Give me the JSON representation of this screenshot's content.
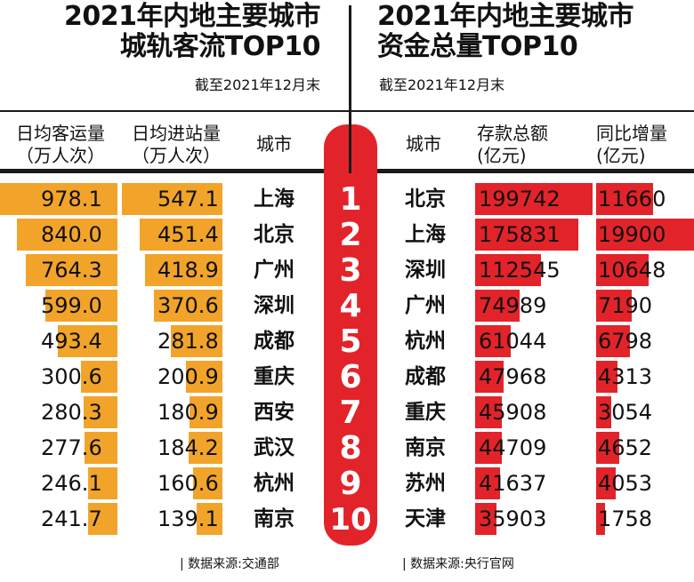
{
  "left_title": [
    "2021年内地主要城市",
    "城轨客流TOP10"
  ],
  "right_title": [
    "2021年内地主要城市",
    "资金总量TOP10"
  ],
  "as_of": "截至2021年12月末",
  "left_headers": {
    "passengers": [
      "日均客运量",
      "（万人次）"
    ],
    "entries": [
      "日均进站量",
      "（万人次）"
    ],
    "city": "城市"
  },
  "right_headers": {
    "city": "城市",
    "deposits": [
      "存款总额",
      "(亿元)"
    ],
    "increase": [
      "同比增量",
      "(亿元)"
    ]
  },
  "ranks": [
    "1",
    "2",
    "3",
    "4",
    "5",
    "6",
    "7",
    "8",
    "9",
    "10"
  ],
  "left_source": "| 数据来源:交通部",
  "right_source": "| 数据来源:央行官网",
  "colors": {
    "orange": "#f2a42a",
    "red": "#e3232a",
    "line": "#1a1a1a"
  },
  "chart_data": [
    {
      "type": "bar",
      "title": "2021年内地主要城市城轨客流TOP10",
      "categories": [
        "上海",
        "北京",
        "广州",
        "深圳",
        "成都",
        "重庆",
        "西安",
        "武汉",
        "杭州",
        "南京"
      ],
      "series": [
        {
          "name": "日均客运量（万人次）",
          "values": [
            978.1,
            840.0,
            764.3,
            599.0,
            493.4,
            300.6,
            280.3,
            277.6,
            246.1,
            241.7
          ]
        },
        {
          "name": "日均进站量（万人次）",
          "values": [
            547.1,
            451.4,
            418.9,
            370.6,
            281.8,
            200.9,
            180.9,
            184.2,
            160.6,
            139.1
          ]
        }
      ]
    },
    {
      "type": "bar",
      "title": "2021年内地主要城市资金总量TOP10",
      "categories": [
        "北京",
        "上海",
        "深圳",
        "广州",
        "杭州",
        "成都",
        "重庆",
        "南京",
        "苏州",
        "天津"
      ],
      "series": [
        {
          "name": "存款总额(亿元)",
          "values": [
            199742,
            175831,
            112545,
            74989,
            61044,
            47968,
            45908,
            44709,
            41637,
            35903
          ]
        },
        {
          "name": "同比增量(亿元)",
          "values": [
            11660,
            19900,
            10648,
            7190,
            6798,
            4313,
            3054,
            4652,
            4053,
            1758
          ]
        }
      ]
    }
  ]
}
